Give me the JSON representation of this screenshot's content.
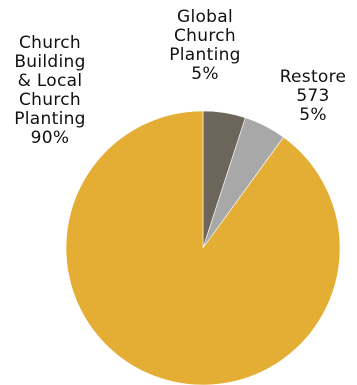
{
  "chart_data": {
    "type": "pie",
    "start_angle_deg": 0,
    "direction": "clockwise",
    "slices": [
      {
        "key": "global",
        "value": 5,
        "color": "#6b655a",
        "label_lines": [
          "Global",
          "Church",
          "Planting",
          "5%"
        ]
      },
      {
        "key": "restore",
        "value": 5,
        "color": "#a8a8a8",
        "label_lines": [
          "Restore",
          "573",
          "5%"
        ]
      },
      {
        "key": "church_building",
        "value": 90,
        "color": "#e4ae35",
        "label_lines": [
          "Church",
          "Building",
          "& Local",
          "Church",
          "Planting",
          "90%"
        ]
      }
    ]
  }
}
